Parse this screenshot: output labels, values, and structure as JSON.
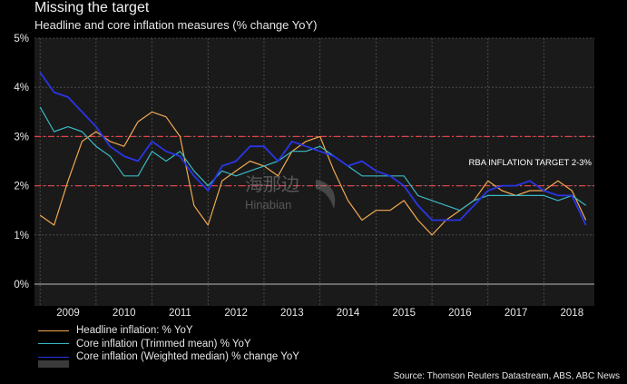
{
  "title": "Missing the target",
  "subtitle": "Headline and core inflation measures (% change YoY)",
  "source": "Source: Thomson Reuters Datastream, ABS, ABC News",
  "target_label": "RBA INFLATION TARGET 2-3%",
  "watermark": {
    "cn": "海那边",
    "en": "Hinabian"
  },
  "colors": {
    "headline": "#f2a950",
    "trimmed": "#3ab8c4",
    "weighted": "#2a35e6",
    "target": "#e0424a",
    "grid": "#555555"
  },
  "chart_data": {
    "type": "line",
    "title": "Missing the target",
    "subtitle": "Headline and core inflation measures (% change YoY)",
    "xlabel": "",
    "ylabel": "",
    "xlim": [
      2008.9,
      2018.9
    ],
    "ylim": [
      0,
      5
    ],
    "yticks": [
      0,
      1,
      2,
      3,
      4,
      5
    ],
    "ytick_labels": [
      "0%",
      "1%",
      "2%",
      "3%",
      "4%",
      "5%"
    ],
    "xticks": [
      2009,
      2010,
      2011,
      2012,
      2013,
      2014,
      2015,
      2016,
      2017,
      2018
    ],
    "xtick_labels": [
      "2009",
      "2010",
      "2011",
      "2012",
      "2013",
      "2014",
      "2015",
      "2016",
      "2017",
      "2018"
    ],
    "grid": true,
    "reference_lines": [
      {
        "y": 2,
        "style": "dashed"
      },
      {
        "y": 3,
        "style": "dashed"
      }
    ],
    "legend": "bottom-left",
    "x": [
      2009.0,
      2009.25,
      2009.5,
      2009.75,
      2010.0,
      2010.25,
      2010.5,
      2010.75,
      2011.0,
      2011.25,
      2011.5,
      2011.75,
      2012.0,
      2012.25,
      2012.5,
      2012.75,
      2013.0,
      2013.25,
      2013.5,
      2013.75,
      2014.0,
      2014.25,
      2014.5,
      2014.75,
      2015.0,
      2015.25,
      2015.5,
      2015.75,
      2016.0,
      2016.25,
      2016.5,
      2016.75,
      2017.0,
      2017.25,
      2017.5,
      2017.75,
      2018.0,
      2018.25,
      2018.5,
      2018.75
    ],
    "series": [
      {
        "name": "Headline inflation: % YoY",
        "values": [
          1.4,
          1.2,
          2.1,
          2.9,
          3.1,
          2.9,
          2.8,
          3.3,
          3.5,
          3.4,
          3.0,
          1.6,
          1.2,
          2.1,
          2.3,
          2.5,
          2.4,
          2.2,
          2.7,
          2.9,
          3.0,
          2.3,
          1.7,
          1.3,
          1.5,
          1.5,
          1.7,
          1.3,
          1.0,
          1.3,
          1.5,
          1.7,
          2.1,
          1.9,
          1.8,
          1.9,
          1.9,
          2.1,
          1.9,
          1.3
        ]
      },
      {
        "name": "Core inflation (Trimmed mean) % YoY",
        "values": [
          3.6,
          3.1,
          3.2,
          3.1,
          2.8,
          2.6,
          2.2,
          2.2,
          2.7,
          2.5,
          2.7,
          2.3,
          2.0,
          2.3,
          2.2,
          2.3,
          2.4,
          2.5,
          2.7,
          2.7,
          2.8,
          2.6,
          2.4,
          2.2,
          2.2,
          2.2,
          2.2,
          1.8,
          1.7,
          1.6,
          1.5,
          1.7,
          1.8,
          1.8,
          1.8,
          1.8,
          1.8,
          1.7,
          1.8,
          1.6
        ]
      },
      {
        "name": "Core inflation (Weighted median) % change YoY",
        "values": [
          4.3,
          3.9,
          3.8,
          3.5,
          3.2,
          2.8,
          2.6,
          2.5,
          2.9,
          2.7,
          2.6,
          2.2,
          1.9,
          2.4,
          2.5,
          2.8,
          2.8,
          2.5,
          2.9,
          2.8,
          2.7,
          2.6,
          2.4,
          2.5,
          2.3,
          2.2,
          2.0,
          1.6,
          1.3,
          1.3,
          1.3,
          1.6,
          1.9,
          2.0,
          2.0,
          2.1,
          1.9,
          1.8,
          1.8,
          1.2
        ]
      }
    ]
  }
}
